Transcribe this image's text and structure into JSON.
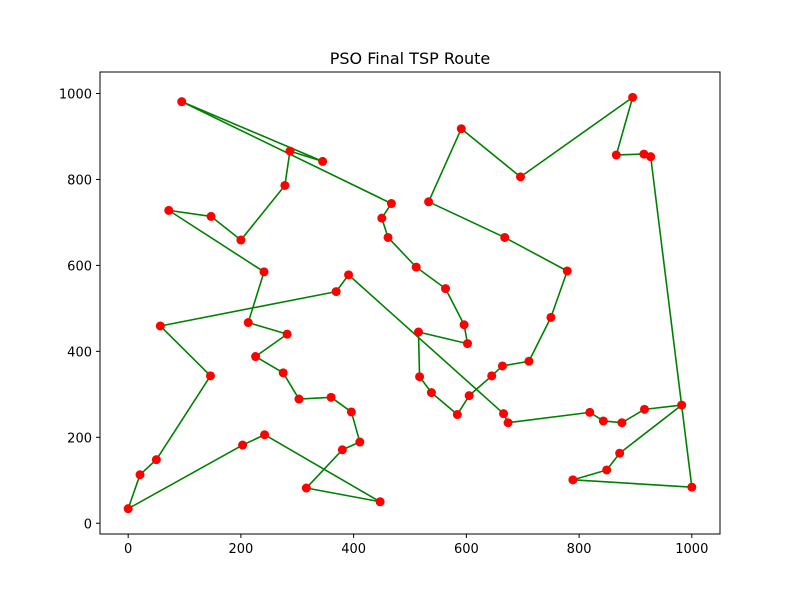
{
  "chart_data": {
    "type": "line",
    "title": "PSO Final TSP Route",
    "xlabel": "",
    "ylabel": "",
    "xlim": [
      -50,
      1050
    ],
    "ylim": [
      -25,
      1050
    ],
    "xticks": [
      0,
      200,
      400,
      600,
      800,
      1000
    ],
    "yticks": [
      0,
      200,
      400,
      600,
      800,
      1000
    ],
    "grid": false,
    "legend": "none",
    "colors": {
      "route": "#008000",
      "city": "#ff0000",
      "axes": "#000000"
    },
    "series": [
      {
        "points": [
          [
            345,
            842
          ],
          [
            287,
            866
          ],
          [
            278,
            786
          ],
          [
            200,
            659
          ],
          [
            147,
            714
          ],
          [
            72,
            728
          ],
          [
            241,
            585
          ],
          [
            213,
            467
          ],
          [
            282,
            440
          ],
          [
            226,
            388
          ],
          [
            275,
            350
          ],
          [
            303,
            289
          ],
          [
            360,
            293
          ],
          [
            396,
            259
          ],
          [
            411,
            189
          ],
          [
            380,
            171
          ],
          [
            316,
            82
          ],
          [
            447,
            50
          ],
          [
            242,
            206
          ],
          [
            203,
            182
          ],
          [
            0,
            34
          ],
          [
            21,
            113
          ],
          [
            50,
            148
          ],
          [
            146,
            343
          ],
          [
            57,
            459
          ],
          [
            369,
            539
          ],
          [
            391,
            578
          ],
          [
            666,
            255
          ],
          [
            674,
            234
          ],
          [
            819,
            258
          ],
          [
            843,
            238
          ],
          [
            876,
            234
          ],
          [
            916,
            265
          ],
          [
            982,
            275
          ],
          [
            872,
            163
          ],
          [
            849,
            124
          ],
          [
            789,
            101
          ],
          [
            1000,
            84
          ],
          [
            927,
            853
          ],
          [
            915,
            859
          ],
          [
            866,
            857
          ],
          [
            895,
            991
          ],
          [
            696,
            806
          ],
          [
            591,
            918
          ],
          [
            533,
            748
          ],
          [
            668,
            665
          ],
          [
            779,
            587
          ],
          [
            750,
            479
          ],
          [
            711,
            377
          ],
          [
            664,
            366
          ],
          [
            645,
            343
          ],
          [
            605,
            297
          ],
          [
            584,
            253
          ],
          [
            538,
            304
          ],
          [
            517,
            341
          ],
          [
            515,
            445
          ],
          [
            602,
            418
          ],
          [
            596,
            462
          ],
          [
            563,
            546
          ],
          [
            511,
            596
          ],
          [
            461,
            665
          ],
          [
            450,
            710
          ],
          [
            467,
            744
          ],
          [
            95,
            981
          ],
          [
            345,
            842
          ]
        ]
      }
    ]
  }
}
